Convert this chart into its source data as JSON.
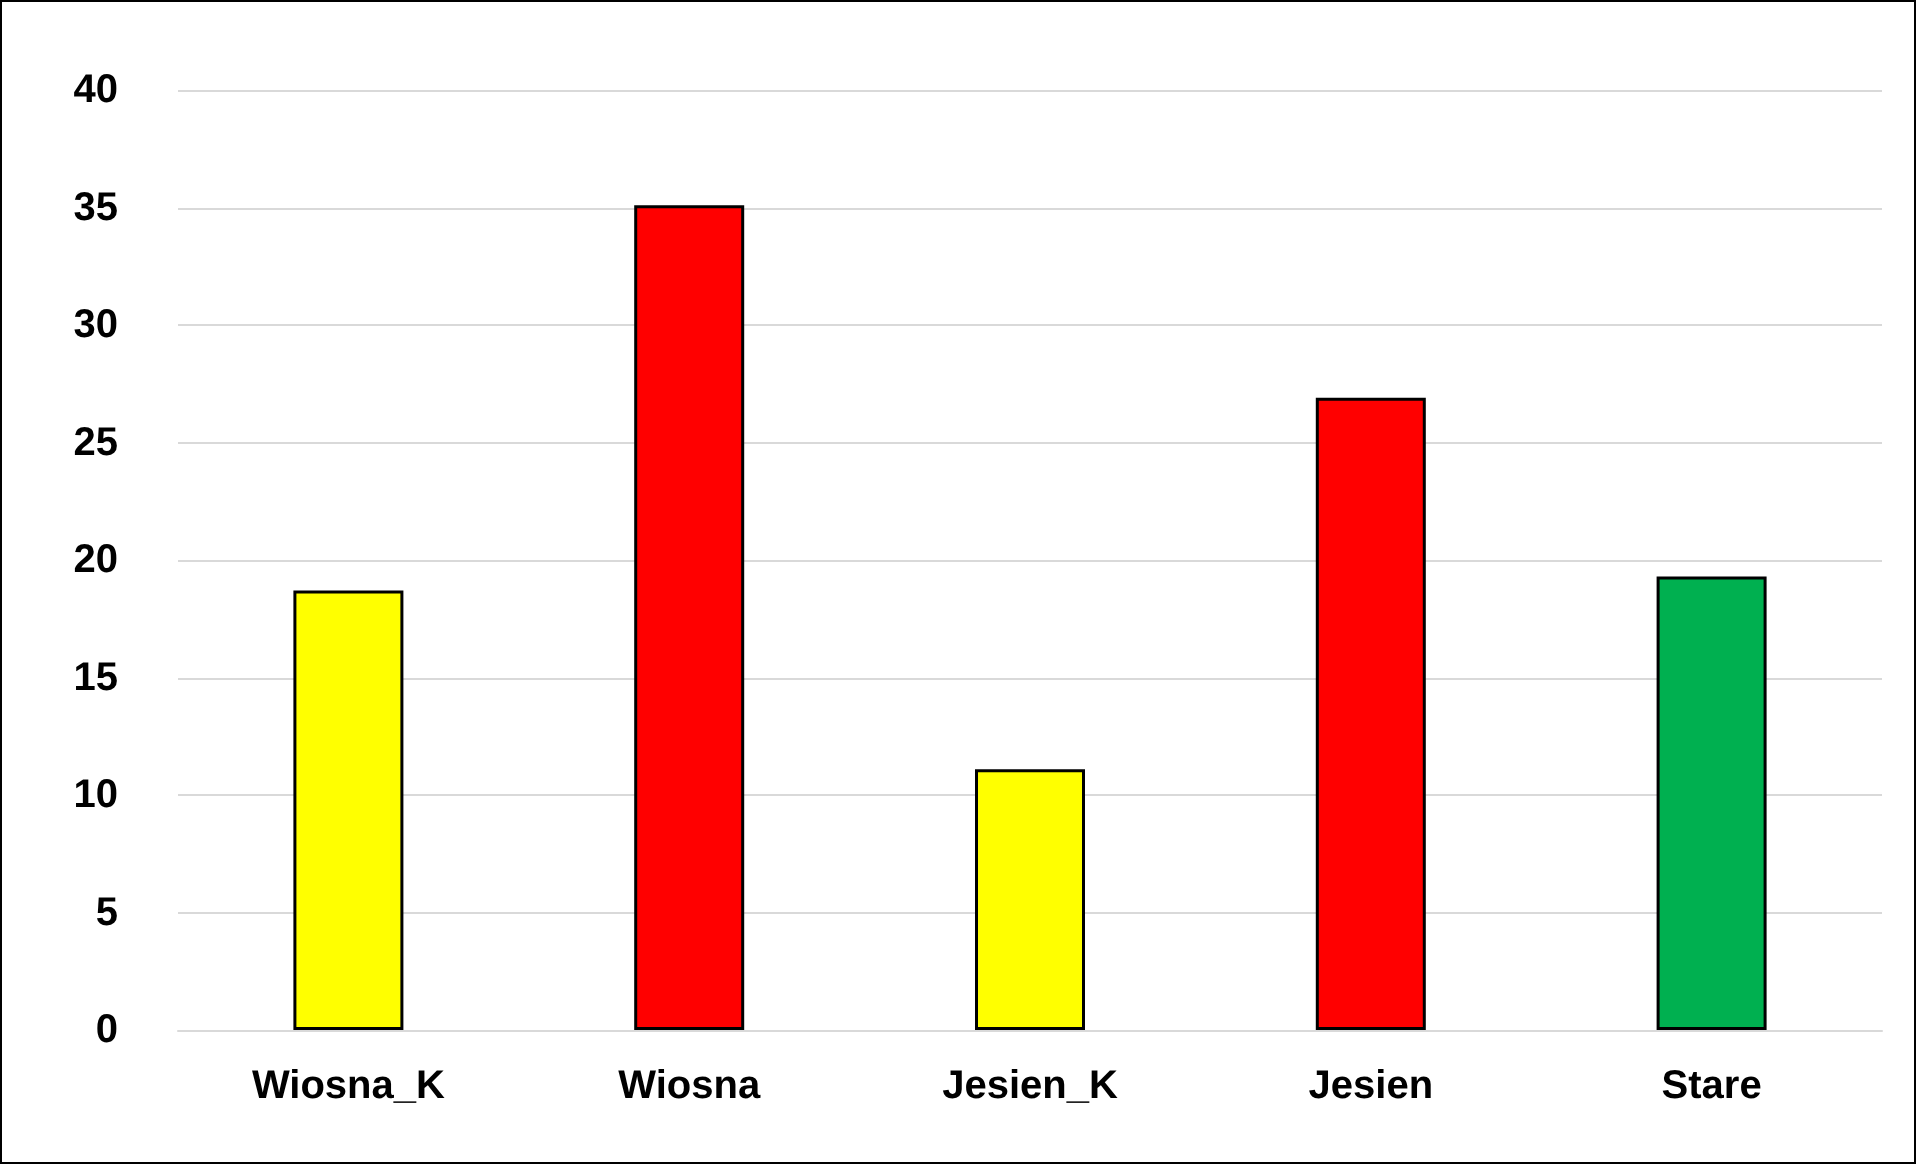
{
  "chart_data": {
    "type": "bar",
    "categories": [
      "Wiosna_K",
      "Wiosna",
      "Jesien_K",
      "Jesien",
      "Stare"
    ],
    "values": [
      18.7,
      35.1,
      11.1,
      26.9,
      19.3
    ],
    "colors": [
      "#ffff00",
      "#ff0000",
      "#ffff00",
      "#ff0000",
      "#00b050"
    ],
    "ylim": [
      0,
      40
    ],
    "yticks": [
      0,
      5,
      10,
      15,
      20,
      25,
      30,
      35,
      40
    ],
    "grid": "y"
  }
}
